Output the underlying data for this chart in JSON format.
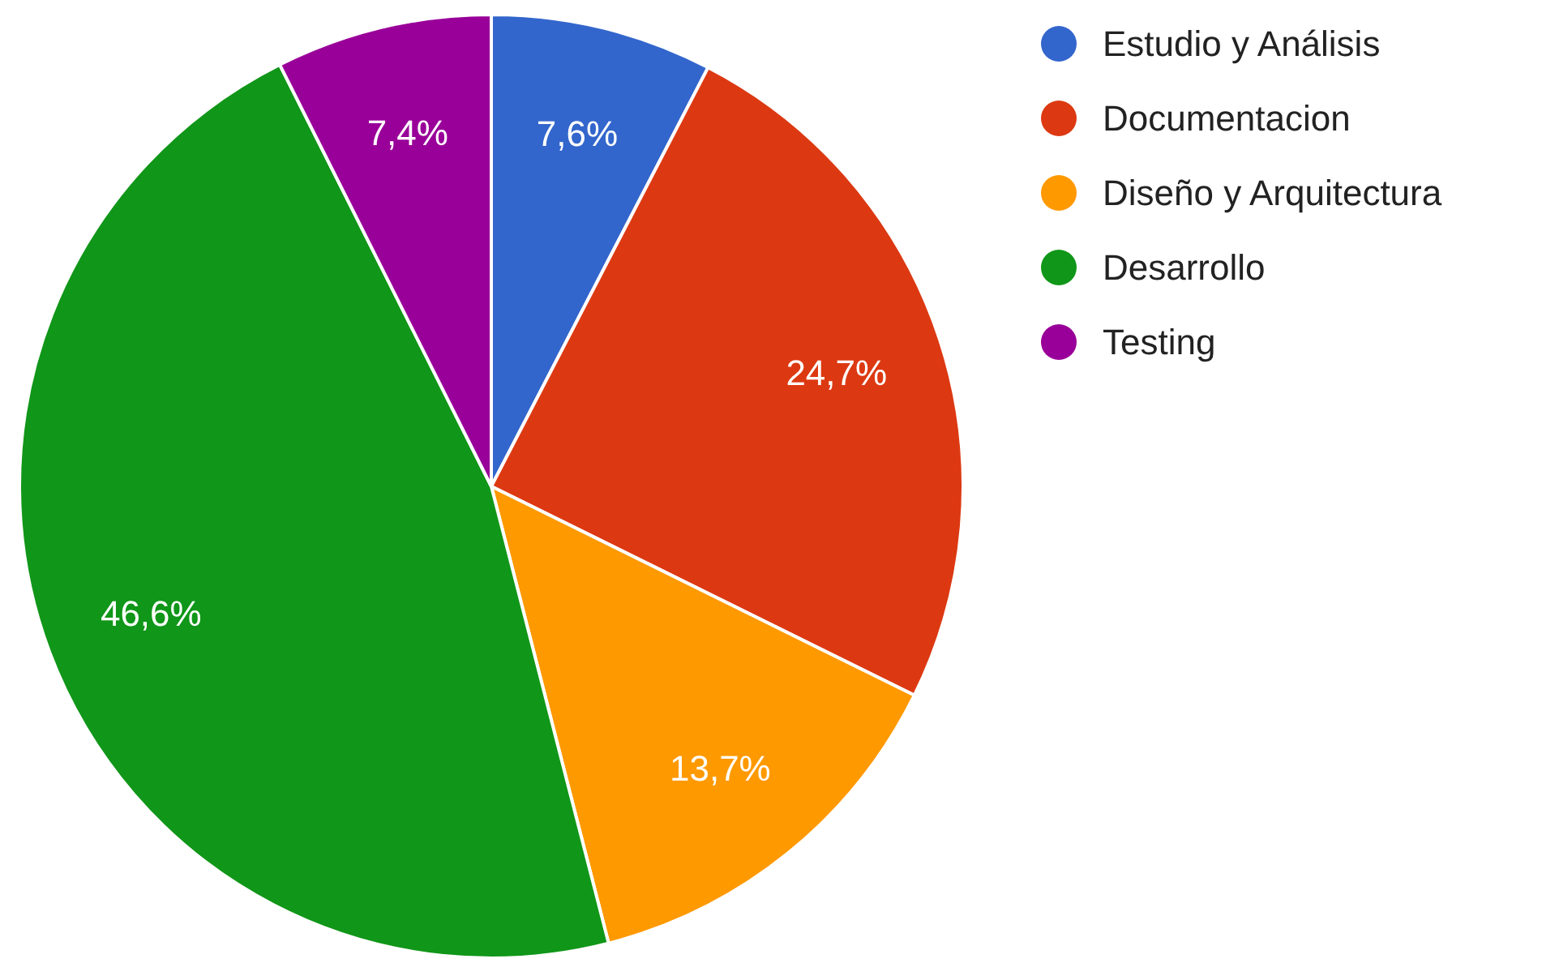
{
  "chart_data": {
    "type": "pie",
    "categories": [
      "Estudio y Análisis",
      "Documentacion",
      "Diseño y Arquitectura",
      "Desarrollo",
      "Testing"
    ],
    "values": [
      7.6,
      24.7,
      13.7,
      46.6,
      7.4
    ],
    "colors": [
      "#3366cc",
      "#dc3912",
      "#ff9900",
      "#109618",
      "#990099"
    ],
    "value_labels": [
      "7,6%",
      "24,7%",
      "13,7%",
      "46,6%",
      "7,4%"
    ],
    "legend": "top right"
  }
}
